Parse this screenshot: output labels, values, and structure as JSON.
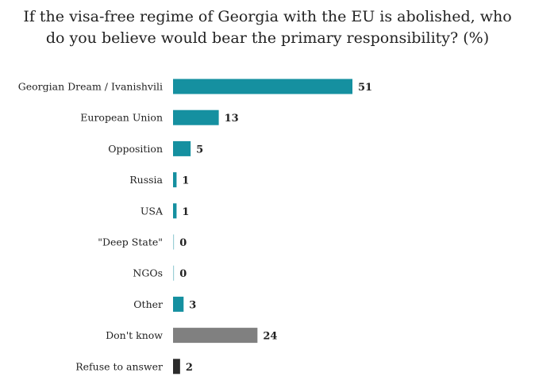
{
  "title_lines": [
    "If the visa-free regime of Georgia with the EU is abolished, who",
    "do you believe would bear the primary responsibility? (%)"
  ],
  "colors": {
    "main": "#1590a0",
    "dont_know": "#808080",
    "refuse": "#2b2b2b",
    "zero_line": "#9ccfd6"
  },
  "chart_data": {
    "type": "bar",
    "orientation": "horizontal",
    "title": "If the visa-free regime of Georgia with the EU is abolished, who do you believe would bear the primary responsibility? (%)",
    "categories": [
      "Georgian Dream / Ivanishvili",
      "European Union",
      "Opposition",
      "Russia",
      "USA",
      "\"Deep State\"",
      "NGOs",
      "Other",
      "Don't know",
      "Refuse to answer"
    ],
    "values": [
      51,
      13,
      5,
      1,
      1,
      0,
      0,
      3,
      24,
      2
    ],
    "value_labels": [
      "51",
      "13",
      "5",
      "1",
      "1",
      "0",
      "0",
      "3",
      "24",
      "2"
    ],
    "bar_colors": [
      "#1590a0",
      "#1590a0",
      "#1590a0",
      "#1590a0",
      "#1590a0",
      "#1590a0",
      "#1590a0",
      "#1590a0",
      "#808080",
      "#2b2b2b"
    ],
    "xlim": [
      0,
      51
    ],
    "grid": false,
    "legend": "none"
  }
}
